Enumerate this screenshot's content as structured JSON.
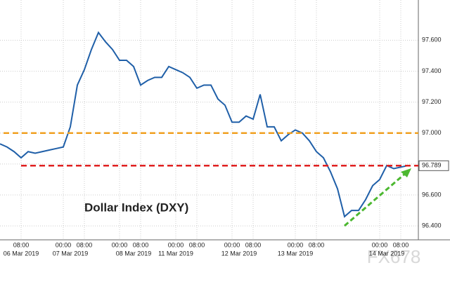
{
  "chart_data": {
    "type": "line",
    "annotation": "Dollar Index (DXY)",
    "watermark": "FX678",
    "categories": [
      null,
      null,
      null,
      "08:00",
      null,
      null,
      null,
      null,
      null,
      "00:00",
      null,
      null,
      "08:00",
      null,
      null,
      null,
      null,
      "00:00",
      null,
      null,
      "08:00",
      null,
      null,
      null,
      null,
      "00:00",
      null,
      null,
      "08:00",
      null,
      null,
      null,
      null,
      "00:00",
      null,
      null,
      "08:00",
      null,
      null,
      null,
      null,
      null,
      "00:00",
      null,
      null,
      "08:00",
      null,
      null,
      null,
      null,
      null,
      null,
      null,
      null,
      "00:00",
      null,
      null,
      "08:00",
      null
    ],
    "date_labels": [
      null,
      null,
      null,
      "06 Mar 2019",
      null,
      null,
      null,
      null,
      null,
      null,
      "07 Mar 2019",
      null,
      null,
      null,
      null,
      null,
      null,
      null,
      null,
      "08 Mar 2019",
      null,
      null,
      null,
      null,
      null,
      "11 Mar 2019",
      null,
      null,
      null,
      null,
      null,
      null,
      null,
      null,
      "12 Mar 2019",
      null,
      null,
      null,
      null,
      null,
      null,
      null,
      "13 Mar 2019",
      null,
      null,
      null,
      null,
      null,
      null,
      null,
      null,
      null,
      null,
      null,
      null,
      "14 Mar 2019",
      null,
      null,
      null
    ],
    "series": [
      {
        "color": "#1f5fa8",
        "values": [
          96.93,
          96.91,
          96.88,
          96.84,
          96.88,
          96.87,
          96.88,
          96.89,
          96.9,
          96.91,
          97.04,
          97.31,
          97.41,
          97.54,
          97.65,
          97.59,
          97.54,
          97.47,
          97.47,
          97.43,
          97.31,
          97.34,
          97.36,
          97.36,
          97.43,
          97.41,
          97.39,
          97.36,
          97.29,
          97.31,
          97.31,
          97.22,
          97.18,
          97.07,
          97.07,
          97.11,
          97.09,
          97.25,
          97.04,
          97.04,
          96.95,
          96.99,
          97.02,
          97.0,
          96.95,
          96.88,
          96.84,
          96.75,
          96.64,
          96.46,
          96.5,
          96.5,
          96.57,
          96.66,
          96.7,
          96.79,
          96.77,
          96.78,
          96.79
        ]
      }
    ],
    "reference_lines": [
      {
        "value": 97.0,
        "color": "#f0a020"
      },
      {
        "value": 96.789,
        "color": "#e02020"
      }
    ],
    "ylim": [
      96.31,
      97.86
    ],
    "yticks": [
      {
        "value": 96.4,
        "label": "96.400"
      },
      {
        "value": 96.6,
        "label": "96.600"
      },
      {
        "value": 96.8,
        "label": "96.800"
      },
      {
        "value": 97.0,
        "label": "97.000"
      },
      {
        "value": 97.2,
        "label": "97.200"
      },
      {
        "value": 97.4,
        "label": "97.400"
      },
      {
        "value": 97.6,
        "label": "97.600"
      }
    ],
    "grid": true
  }
}
